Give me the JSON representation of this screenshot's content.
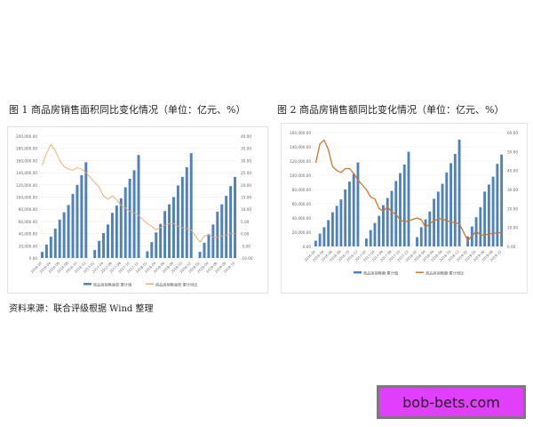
{
  "figure1": {
    "title": "图 1   商品房销售面积同比变化情况（单位：亿元、%）",
    "source": "资料来源：联合评级根据 Wind 整理"
  },
  "figure2": {
    "title": "图 2   商品房销售额同比变化情况（单位：亿元、%）"
  },
  "watermark": {
    "text": "bob-bets.com",
    "bg": "#e040fb"
  },
  "colors": {
    "bar": "#4f81bd",
    "line1": "#e9a96a",
    "line2": "#c8782f"
  },
  "chart_data": [
    {
      "type": "bar",
      "title": "商品房销售面积同比变化情况（单位：亿元、%）",
      "categories": [
        "2016-02",
        "2016-03",
        "2016-04",
        "2016-05",
        "2016-06",
        "2016-07",
        "2016-08",
        "2016-09",
        "2016-10",
        "2016-11",
        "2016-12",
        "2017-02",
        "2017-03",
        "2017-04",
        "2017-05",
        "2017-06",
        "2017-07",
        "2017-08",
        "2017-09",
        "2017-10",
        "2017-11",
        "2017-12",
        "2018-02",
        "2018-03",
        "2018-04",
        "2018-05",
        "2018-06",
        "2018-07",
        "2018-08",
        "2018-09",
        "2018-10",
        "2018-11",
        "2018-12",
        "2019-02",
        "2019-03",
        "2019-04",
        "2019-05",
        "2019-06",
        "2019-07",
        "2019-08",
        "2019-09",
        "2019-10"
      ],
      "tick_labels": [
        "2016-02",
        "2016-04",
        "2016-06",
        "2016-08",
        "2016-10",
        "2016-12",
        "2017-02",
        "2017-04",
        "2017-06",
        "2017-08",
        "2017-10",
        "2017-12",
        "2018-02",
        "2018-04",
        "2018-06",
        "2018-08",
        "2018-10",
        "2018-12",
        "2019-02",
        "2019-04",
        "2019-06",
        "2019-08",
        "2019-10"
      ],
      "series": [
        {
          "name": "商品房销售面积:累计值",
          "axis": "left",
          "type": "bar",
          "values": [
            10000,
            22000,
            35000,
            48000,
            63000,
            75000,
            87000,
            105000,
            120000,
            136000,
            157000,
            13000,
            28000,
            41000,
            55000,
            74000,
            86000,
            98000,
            116000,
            130000,
            144000,
            169000,
            11000,
            26000,
            42000,
            56000,
            77000,
            88000,
            100000,
            119000,
            133000,
            149000,
            172000,
            10000,
            25000,
            39000,
            55000,
            76000,
            88000,
            102000,
            118000,
            133000
          ]
        },
        {
          "name": "商品房销售面积:累计同比",
          "axis": "right",
          "type": "line",
          "values": [
            28.0,
            33.0,
            36.5,
            34.0,
            30.0,
            27.5,
            26.5,
            26.0,
            27.0,
            26.5,
            25.0,
            21.0,
            19.0,
            15.5,
            14.0,
            15.5,
            14.0,
            11.5,
            10.5,
            9.0,
            8.5,
            7.5,
            4.0,
            3.0,
            1.5,
            2.5,
            3.5,
            4.0,
            4.0,
            3.0,
            2.5,
            2.0,
            1.5,
            -3.5,
            -1.0,
            -0.5,
            -1.5,
            -1.5,
            -1.0,
            -0.5,
            0.0,
            0.0
          ]
        }
      ],
      "left_axis": {
        "min": 0,
        "max": 200000,
        "step": 20000,
        "labels": [
          "0.00",
          "20,000.00",
          "40,000.00",
          "60,000.00",
          "80,000.00",
          "100,000.00",
          "120,000.00",
          "140,000.00",
          "160,000.00",
          "180,000.00",
          "200,000.00"
        ]
      },
      "right_axis": {
        "min": -10,
        "max": 40,
        "step": 5,
        "labels": [
          "-10.00",
          "-5.00",
          "0.00",
          "5.00",
          "10.00",
          "15.00",
          "20.00",
          "25.00",
          "30.00",
          "35.00",
          "40.00"
        ]
      },
      "legend": [
        "商品房销售面积:累计值",
        "商品房销售面积:累计同比"
      ],
      "legend_position": "bottom",
      "grid": true
    },
    {
      "type": "bar",
      "title": "商品房销售额同比变化情况（单位：亿元、%）",
      "categories": [
        "2016-02",
        "2016-03",
        "2016-04",
        "2016-05",
        "2016-06",
        "2016-07",
        "2016-08",
        "2016-09",
        "2016-10",
        "2016-11",
        "2016-12",
        "2017-02",
        "2017-03",
        "2017-04",
        "2017-05",
        "2017-06",
        "2017-07",
        "2017-08",
        "2017-09",
        "2017-10",
        "2017-11",
        "2017-12",
        "2018-02",
        "2018-03",
        "2018-04",
        "2018-05",
        "2018-06",
        "2018-07",
        "2018-08",
        "2018-09",
        "2018-10",
        "2018-11",
        "2018-12",
        "2019-02",
        "2019-03",
        "2019-04",
        "2019-05",
        "2019-06",
        "2019-07",
        "2019-08",
        "2019-09",
        "2019-10"
      ],
      "tick_labels": [
        "2016-02",
        "2016-04",
        "2016-06",
        "2016-08",
        "2016-10",
        "2016-12",
        "2017-02",
        "2017-04",
        "2017-06",
        "2017-08",
        "2017-10",
        "2017-12",
        "2018-02",
        "2018-04",
        "2018-06",
        "2018-08",
        "2018-10",
        "2018-12",
        "2019-02",
        "2019-04",
        "2019-06",
        "2019-08",
        "2019-10"
      ],
      "series": [
        {
          "name": "商品房销售额:累计值",
          "axis": "left",
          "type": "bar",
          "values": [
            8000,
            18000,
            27000,
            37000,
            48000,
            57000,
            66000,
            80000,
            91000,
            102000,
            118000,
            11000,
            23000,
            33000,
            43000,
            58000,
            68000,
            78000,
            92000,
            103000,
            115000,
            133000,
            13000,
            27000,
            38000,
            49000,
            67000,
            77000,
            88000,
            104000,
            117000,
            130000,
            150000,
            14000,
            28000,
            41000,
            55000,
            77000,
            87000,
            98000,
            116000,
            129000
          ]
        },
        {
          "name": "商品房销售额:累计同比",
          "axis": "right",
          "type": "line",
          "values": [
            44.0,
            54.0,
            56.0,
            51.0,
            42.0,
            40.0,
            39.0,
            41.0,
            41.0,
            38.5,
            35.0,
            30.0,
            26.0,
            25.0,
            20.0,
            18.5,
            21.0,
            18.0,
            17.0,
            14.0,
            13.0,
            13.5,
            15.0,
            14.0,
            10.0,
            12.0,
            13.5,
            14.5,
            14.5,
            13.5,
            13.0,
            12.5,
            12.0,
            3.0,
            5.5,
            8.0,
            6.0,
            6.0,
            6.5,
            7.0,
            7.0,
            7.5
          ]
        }
      ],
      "left_axis": {
        "min": 0,
        "max": 160000,
        "step": 20000,
        "labels": [
          "0.00",
          "20,000.00",
          "40,000.00",
          "60,000.00",
          "80,000.00",
          "100,000.00",
          "120,000.00",
          "140,000.00",
          "160,000.00"
        ]
      },
      "right_axis": {
        "min": 0,
        "max": 60,
        "step": 10,
        "labels": [
          "0.00",
          "10.00",
          "20.00",
          "30.00",
          "40.00",
          "50.00",
          "60.00"
        ]
      },
      "legend": [
        "商品房销售额:累计值",
        "商品房销售额:累计同比"
      ],
      "legend_position": "bottom",
      "grid": true
    }
  ]
}
